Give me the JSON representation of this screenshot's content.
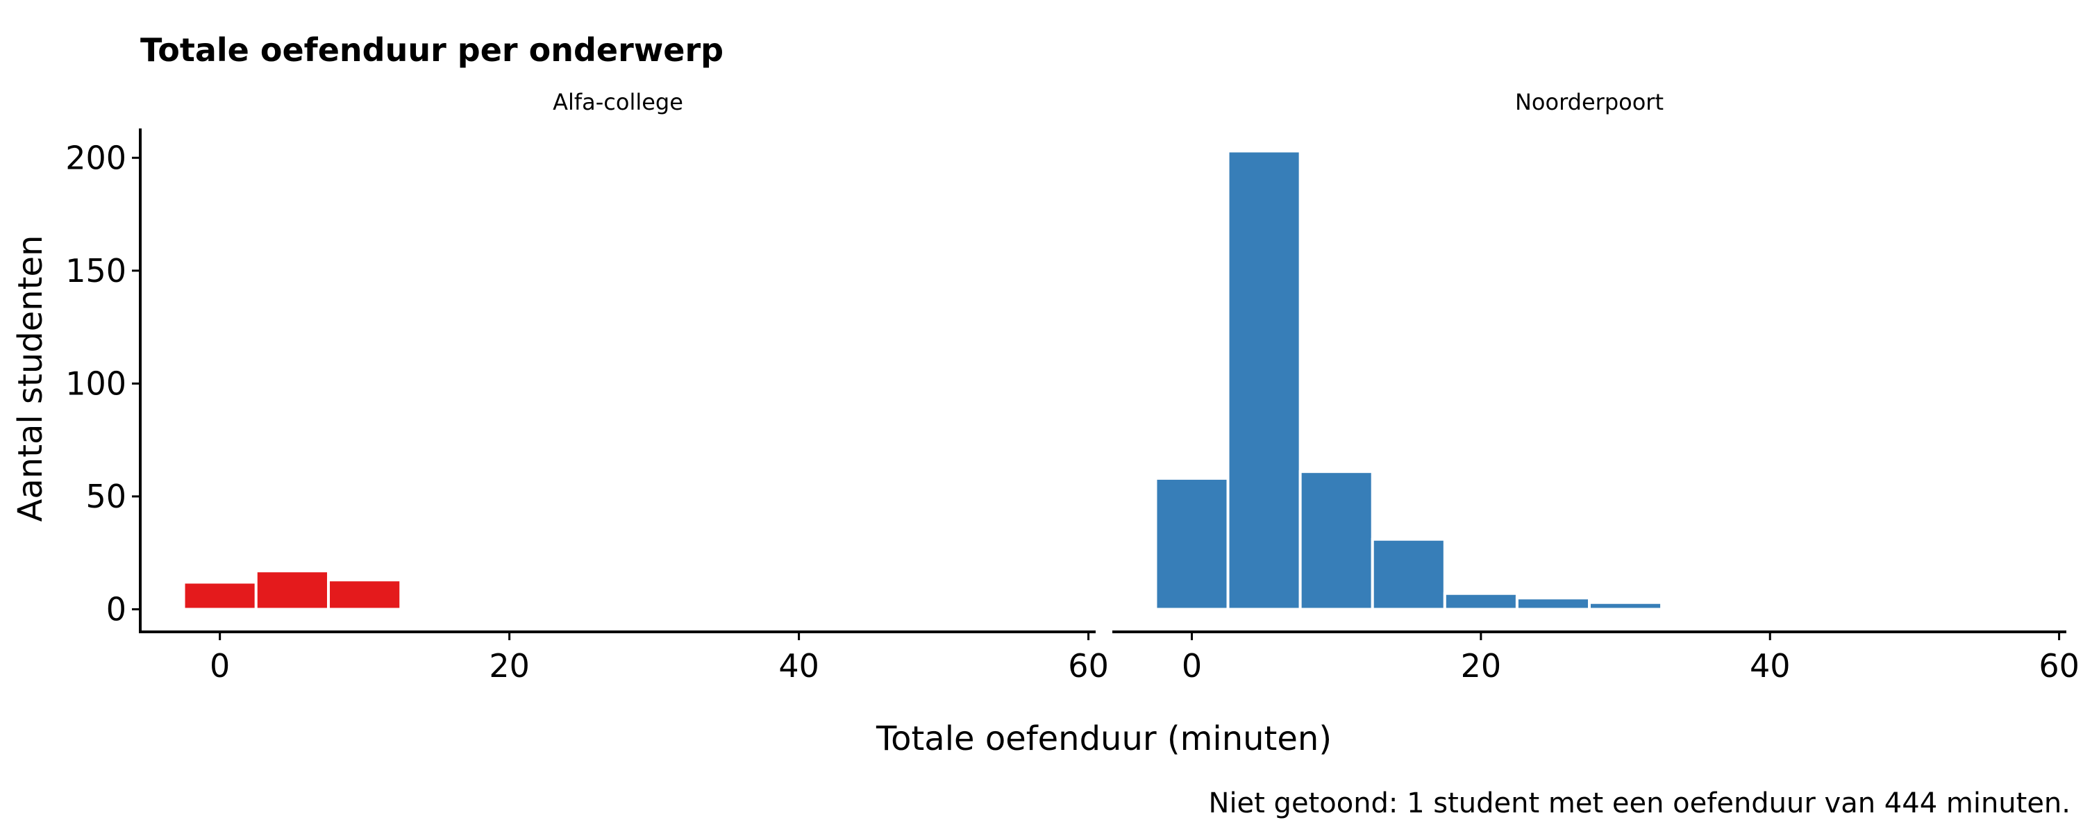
{
  "chart_data": {
    "type": "bar",
    "title": "Totale oefenduur per onderwerp",
    "xlabel": "Totale oefenduur (minuten)",
    "ylabel": "Aantal studenten",
    "caption": "Niet getoond: 1 student met een oefenduur van 444 minuten.",
    "xlim": [
      -5.5,
      60.5
    ],
    "ylim": [
      -10,
      213
    ],
    "x_ticks": [
      0,
      20,
      40,
      60
    ],
    "y_ticks": [
      0,
      50,
      100,
      150,
      200
    ],
    "bin_width": 5,
    "grid": false,
    "legend": "none",
    "panels": [
      {
        "name": "Alfa-college",
        "color": "#E41A1C",
        "bins": [
          {
            "x": 0,
            "count": 12
          },
          {
            "x": 5,
            "count": 17
          },
          {
            "x": 10,
            "count": 13
          }
        ]
      },
      {
        "name": "Noorderpoort",
        "color": "#377EB8",
        "bins": [
          {
            "x": 0,
            "count": 58
          },
          {
            "x": 5,
            "count": 203
          },
          {
            "x": 10,
            "count": 61
          },
          {
            "x": 15,
            "count": 31
          },
          {
            "x": 20,
            "count": 7
          },
          {
            "x": 25,
            "count": 5
          },
          {
            "x": 30,
            "count": 3
          }
        ]
      }
    ]
  }
}
